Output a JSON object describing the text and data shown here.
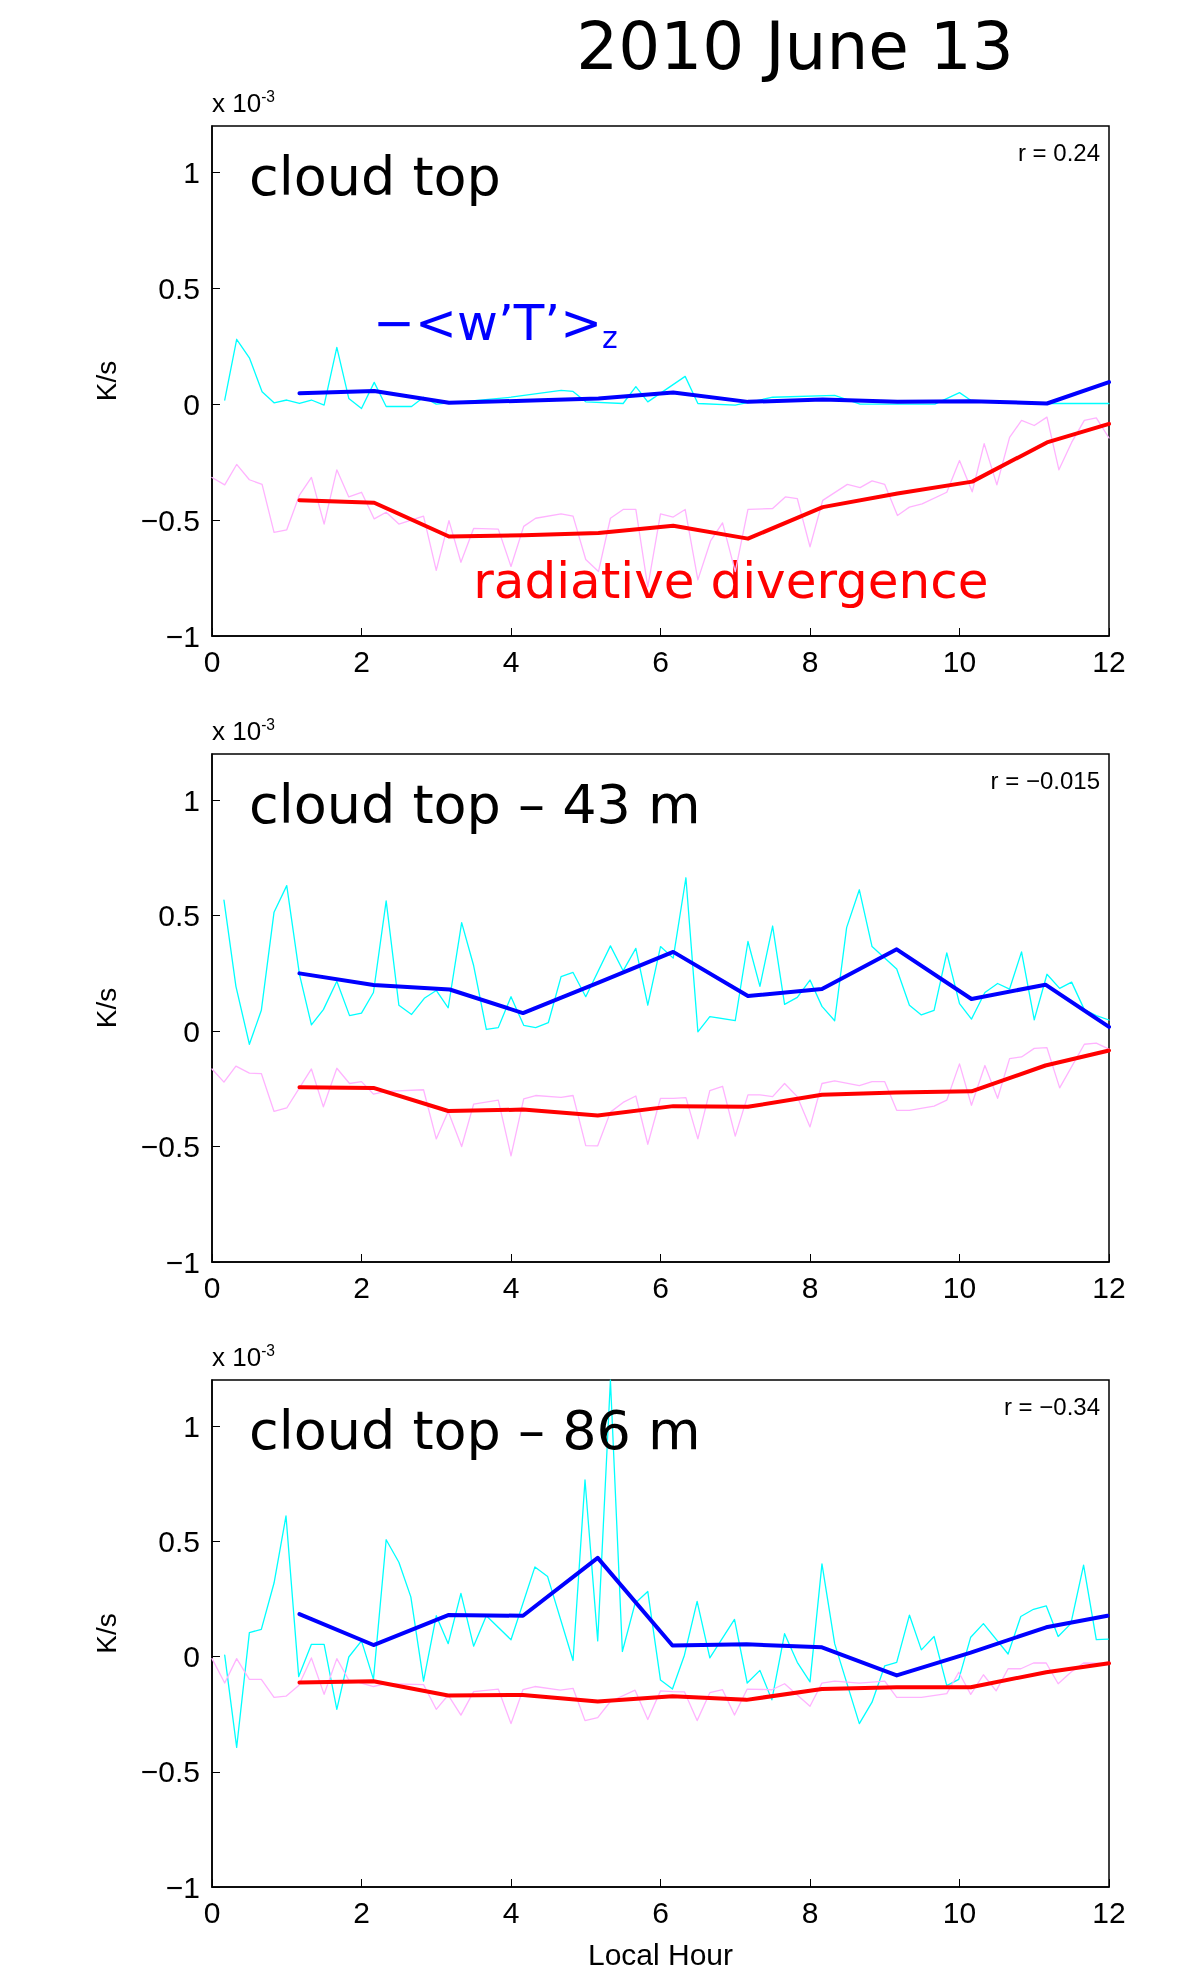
{
  "chart_data": [
    {
      "type": "line",
      "title": "2010 June 13",
      "subtitle": "cloud top",
      "ylabel": "K/s",
      "xlim": [
        0,
        12
      ],
      "xticks": [
        0,
        2,
        4,
        6,
        8,
        10,
        12
      ],
      "ylim": [
        -1,
        1.2
      ],
      "yticks": [
        -1,
        -0.5,
        0,
        0.5,
        1
      ],
      "grid": false,
      "legend": false,
      "marker": "none",
      "line_style": "solid",
      "annotations": [
        "x 10$^{-3}$",
        "r = 0.24"
      ],
      "series": [
        {
          "color": "#00ffff",
          "x": [
            0.17,
            0.33,
            0.5,
            0.67,
            0.83,
            1.0,
            1.17,
            1.33,
            1.5,
            1.67,
            1.83,
            2.0,
            2.17,
            2.33,
            2.67,
            2.83,
            3.0,
            4.0,
            4.67,
            4.83,
            5.0,
            5.5,
            5.67,
            5.83,
            6.33,
            6.5,
            7.0,
            7.5,
            8.33,
            8.67,
            9.67,
            10.0,
            10.17,
            11.17,
            12
          ],
          "values": [
            0.018,
            0.28,
            0.2,
            0.054,
            0.006,
            0.018,
            0.003,
            0.018,
            -0.004,
            0.245,
            0.025,
            -0.019,
            0.094,
            -0.01,
            -0.01,
            0.03,
            0,
            0.03,
            0.06,
            0.055,
            0.01,
            0.003,
            0.076,
            0.01,
            0.12,
            0.003,
            -0.004,
            0.03,
            0.038,
            0,
            0,
            0.05,
            0.013,
            0.003,
            0.003
          ]
        },
        {
          "color": "#ffb3ff",
          "x": [
            0,
            0.17,
            0.33,
            0.5,
            0.67,
            0.83,
            1.0,
            1.17,
            1.33,
            1.5,
            1.67,
            1.83,
            2.0,
            2.17,
            2.33,
            2.5,
            2.83,
            3.0,
            3.17,
            3.33,
            3.5,
            3.83,
            4.0,
            4.17,
            4.33,
            4.67,
            4.83,
            5.0,
            5.17,
            5.33,
            5.5,
            5.67,
            5.83,
            6.0,
            6.17,
            6.33,
            6.5,
            6.67,
            6.83,
            7.0,
            7.17,
            7.5,
            7.67,
            7.83,
            8.0,
            8.17,
            8.5,
            8.67,
            8.83,
            9.0,
            9.17,
            9.33,
            9.5,
            9.83,
            10.0,
            10.17,
            10.33,
            10.5,
            10.67,
            10.83,
            11.0,
            11.17,
            11.33,
            11.5,
            11.67,
            11.83,
            12
          ],
          "values": [
            -0.316,
            -0.348,
            -0.26,
            -0.326,
            -0.346,
            -0.553,
            -0.542,
            -0.392,
            -0.316,
            -0.517,
            -0.283,
            -0.4,
            -0.38,
            -0.495,
            -0.466,
            -0.517,
            -0.483,
            -0.717,
            -0.502,
            -0.682,
            -0.536,
            -0.539,
            -0.7,
            -0.527,
            -0.492,
            -0.473,
            -0.483,
            -0.67,
            -0.722,
            -0.492,
            -0.454,
            -0.454,
            -0.788,
            -0.473,
            -0.487,
            -0.454,
            -0.758,
            -0.59,
            -0.512,
            -0.722,
            -0.454,
            -0.45,
            -0.4,
            -0.407,
            -0.615,
            -0.415,
            -0.346,
            -0.36,
            -0.331,
            -0.346,
            -0.48,
            -0.444,
            -0.43,
            -0.38,
            -0.243,
            -0.378,
            -0.17,
            -0.348,
            -0.143,
            -0.07,
            -0.092,
            -0.056,
            -0.283,
            -0.165,
            -0.07,
            -0.059,
            -0.146
          ]
        },
        {
          "name": "−<w’T’>$_{z}$",
          "color": "#0000ff",
          "x": [
            1.17,
            2.17,
            3.17,
            4.17,
            5.17,
            6.17,
            7.17,
            8.17,
            9.17,
            10.17,
            11.17,
            12
          ],
          "values": [
            0.047,
            0.057,
            0.006,
            0.015,
            0.025,
            0.05,
            0.01,
            0.02,
            0.01,
            0.013,
            0.003,
            0.095
          ]
        },
        {
          "name": "radiative divergence",
          "color": "#ff0000",
          "x": [
            1.17,
            2.17,
            3.17,
            4.17,
            5.17,
            6.17,
            7.17,
            8.17,
            9.17,
            10.17,
            11.17,
            12
          ],
          "values": [
            -0.414,
            -0.425,
            -0.571,
            -0.565,
            -0.556,
            -0.524,
            -0.58,
            -0.444,
            -0.385,
            -0.334,
            -0.165,
            -0.085
          ]
        }
      ]
    },
    {
      "type": "line",
      "subtitle": "cloud top – 43 m",
      "ylabel": "K/s",
      "xlim": [
        0,
        12
      ],
      "xticks": [
        0,
        2,
        4,
        6,
        8,
        10,
        12
      ],
      "ylim": [
        -1,
        1.2
      ],
      "yticks": [
        -1,
        -0.5,
        0,
        0.5,
        1
      ],
      "grid": false,
      "legend": false,
      "marker": "none",
      "line_style": "solid",
      "annotations": [
        "x 10$^{-3}$",
        "r = −0.015"
      ],
      "series": [
        {
          "color": "#00ffff",
          "x": [
            0.16,
            0.32,
            0.5,
            0.66,
            0.83,
            1.0,
            1.17,
            1.33,
            1.49,
            1.67,
            1.84,
            2.0,
            2.16,
            2.33,
            2.5,
            2.67,
            2.84,
            3.0,
            3.16,
            3.34,
            3.5,
            3.67,
            3.83,
            4.0,
            4.17,
            4.33,
            4.5,
            4.67,
            4.83,
            5.0,
            5.33,
            5.5,
            5.67,
            5.83,
            6.0,
            6.17,
            6.34,
            6.5,
            6.66,
            7.0,
            7.17,
            7.33,
            7.5,
            7.66,
            7.83,
            8.0,
            8.16,
            8.33,
            8.49,
            8.66,
            8.83,
            9.16,
            9.33,
            9.49,
            9.66,
            9.83,
            10.0,
            10.16,
            10.34,
            10.51,
            10.67,
            10.83,
            11.0,
            11.17,
            11.34,
            11.5,
            11.67,
            11.83,
            12
          ],
          "values": [
            0.567,
            0.194,
            -0.057,
            0.09,
            0.515,
            0.63,
            0.246,
            0.027,
            0.093,
            0.216,
            0.067,
            0.078,
            0.167,
            0.564,
            0.112,
            0.072,
            0.142,
            0.176,
            0.101,
            0.47,
            0.284,
            0.007,
            0.015,
            0.149,
            0.025,
            0.015,
            0.037,
            0.236,
            0.254,
            0.149,
            0.369,
            0.261,
            0.358,
            0.112,
            0.366,
            0.316,
            0.664,
            -0.003,
            0.063,
            0.045,
            0.388,
            0.194,
            0.455,
            0.116,
            0.146,
            0.221,
            0.107,
            0.045,
            0.448,
            0.612,
            0.366,
            0.269,
            0.112,
            0.07,
            0.09,
            0.339,
            0.119,
            0.052,
            0.167,
            0.206,
            0.182,
            0.343,
            0.049,
            0.246,
            0.185,
            0.212,
            0.093,
            0.067,
            0.048
          ]
        },
        {
          "color": "#ffb3ff",
          "x": [
            0,
            0.16,
            0.32,
            0.5,
            0.66,
            0.83,
            1.0,
            1.17,
            1.33,
            1.49,
            1.67,
            1.84,
            2.0,
            2.16,
            2.33,
            2.83,
            3.0,
            3.16,
            3.34,
            3.5,
            3.83,
            4.0,
            4.17,
            4.33,
            4.67,
            4.83,
            5.0,
            5.16,
            5.33,
            5.5,
            5.67,
            5.83,
            6.0,
            6.17,
            6.34,
            6.5,
            6.66,
            6.83,
            7.0,
            7.17,
            7.33,
            7.5,
            7.66,
            7.83,
            8.0,
            8.16,
            8.33,
            8.66,
            8.83,
            9.0,
            9.16,
            9.33,
            9.66,
            9.83,
            10.0,
            10.16,
            10.34,
            10.51,
            10.67,
            10.83,
            11.0,
            11.17,
            11.34,
            11.67,
            11.83,
            12
          ],
          "values": [
            -0.164,
            -0.221,
            -0.152,
            -0.182,
            -0.184,
            -0.348,
            -0.333,
            -0.246,
            -0.164,
            -0.328,
            -0.161,
            -0.227,
            -0.219,
            -0.273,
            -0.261,
            -0.254,
            -0.467,
            -0.348,
            -0.5,
            -0.316,
            -0.299,
            -0.54,
            -0.294,
            -0.279,
            -0.287,
            -0.279,
            -0.496,
            -0.497,
            -0.351,
            -0.309,
            -0.281,
            -0.49,
            -0.291,
            -0.291,
            -0.288,
            -0.467,
            -0.258,
            -0.239,
            -0.455,
            -0.276,
            -0.276,
            -0.284,
            -0.227,
            -0.284,
            -0.415,
            -0.227,
            -0.216,
            -0.236,
            -0.219,
            -0.219,
            -0.343,
            -0.343,
            -0.325,
            -0.299,
            -0.142,
            -0.321,
            -0.149,
            -0.291,
            -0.119,
            -0.112,
            -0.075,
            -0.072,
            -0.246,
            -0.057,
            -0.052,
            -0.078
          ]
        },
        {
          "color": "#0000ff",
          "x": [
            1.17,
            2.16,
            3.18,
            4.16,
            5.17,
            6.17,
            7.17,
            8.16,
            9.16,
            10.16,
            11.15,
            12
          ],
          "values": [
            0.25,
            0.2,
            0.18,
            0.078,
            0.21,
            0.343,
            0.152,
            0.182,
            0.354,
            0.139,
            0.201,
            0.018
          ]
        },
        {
          "color": "#ff0000",
          "x": [
            1.17,
            2.16,
            3.16,
            4.16,
            5.16,
            6.17,
            7.17,
            8.16,
            9.15,
            10.16,
            11.15,
            12
          ],
          "values": [
            -0.243,
            -0.246,
            -0.346,
            -0.34,
            -0.366,
            -0.325,
            -0.328,
            -0.276,
            -0.266,
            -0.261,
            -0.149,
            -0.084
          ]
        }
      ]
    },
    {
      "type": "line",
      "subtitle": "cloud top – 86 m",
      "xlabel": "Local Hour",
      "ylabel": "K/s",
      "xlim": [
        0,
        12
      ],
      "xticks": [
        0,
        2,
        4,
        6,
        8,
        10,
        12
      ],
      "ylim": [
        -1,
        1.2
      ],
      "yticks": [
        -1,
        -0.5,
        0,
        0.5,
        1
      ],
      "grid": false,
      "legend": false,
      "marker": "none",
      "line_style": "solid",
      "annotations": [
        "x 10$^{-3}$",
        "r = −0.34"
      ],
      "series": [
        {
          "color": "#00ffff",
          "x": [
            0.17,
            0.33,
            0.5,
            0.66,
            0.83,
            0.99,
            1.16,
            1.33,
            1.5,
            1.67,
            1.83,
            2.0,
            2.16,
            2.33,
            2.5,
            2.66,
            2.83,
            3.0,
            3.16,
            3.33,
            3.5,
            3.67,
            4.0,
            4.32,
            4.49,
            4.83,
            4.99,
            5.16,
            5.33,
            5.49,
            5.66,
            5.83,
            6.0,
            6.16,
            6.32,
            6.49,
            6.66,
            6.99,
            7.16,
            7.33,
            7.49,
            7.66,
            7.83,
            8.0,
            8.16,
            8.33,
            8.66,
            8.83,
            9.0,
            9.16,
            9.33,
            9.49,
            9.66,
            9.83,
            9.99,
            10.15,
            10.32,
            10.65,
            10.82,
            10.99,
            11.16,
            11.32,
            11.49,
            11.66,
            11.83,
            11.99
          ],
          "values": [
            0.006,
            -0.394,
            0.104,
            0.118,
            0.319,
            0.61,
            -0.087,
            0.053,
            0.053,
            -0.229,
            -0.002,
            0.068,
            -0.099,
            0.507,
            0.409,
            0.259,
            -0.107,
            0.177,
            0.056,
            0.274,
            0.045,
            0.177,
            0.073,
            0.389,
            0.347,
            -0.017,
            0.766,
            0.068,
            1.2,
            0.022,
            0.231,
            0.282,
            -0.102,
            -0.141,
            0.006,
            0.239,
            -0.006,
            0.161,
            -0.115,
            -0.06,
            -0.188,
            0.099,
            -0.025,
            -0.11,
            0.402,
            0.056,
            -0.291,
            -0.198,
            -0.04,
            -0.025,
            0.18,
            0.029,
            0.087,
            -0.126,
            -0.099,
            0.084,
            0.143,
            0.011,
            0.174,
            0.205,
            0.22,
            0.087,
            0.143,
            0.397,
            0.073,
            0.076
          ]
        },
        {
          "color": "#ffb3ff",
          "x": [
            0,
            0.17,
            0.33,
            0.5,
            0.66,
            0.83,
            0.99,
            1.16,
            1.33,
            1.5,
            1.67,
            1.83,
            2.0,
            2.16,
            2.33,
            2.83,
            3.0,
            3.16,
            3.33,
            3.5,
            3.83,
            4.0,
            4.16,
            4.32,
            4.66,
            4.83,
            4.99,
            5.16,
            5.33,
            5.66,
            5.83,
            6.0,
            6.16,
            6.32,
            6.49,
            6.66,
            6.83,
            6.99,
            7.16,
            7.49,
            7.66,
            8.0,
            8.16,
            8.33,
            8.66,
            9.0,
            9.16,
            9.49,
            9.83,
            9.99,
            10.15,
            10.32,
            10.49,
            10.65,
            10.82,
            10.99,
            11.16,
            11.32,
            11.49,
            11.66,
            11.99
          ],
          "values": [
            -0.009,
            -0.115,
            -0.009,
            -0.099,
            -0.099,
            -0.177,
            -0.172,
            -0.126,
            -0.006,
            -0.164,
            -0.009,
            -0.102,
            -0.115,
            -0.13,
            -0.118,
            -0.122,
            -0.229,
            -0.167,
            -0.254,
            -0.152,
            -0.141,
            -0.291,
            -0.144,
            -0.13,
            -0.146,
            -0.138,
            -0.278,
            -0.265,
            -0.195,
            -0.146,
            -0.273,
            -0.149,
            -0.152,
            -0.153,
            -0.278,
            -0.157,
            -0.144,
            -0.254,
            -0.141,
            -0.144,
            -0.118,
            -0.216,
            -0.115,
            -0.107,
            -0.115,
            -0.107,
            -0.177,
            -0.177,
            -0.161,
            -0.068,
            -0.164,
            -0.079,
            -0.149,
            -0.053,
            -0.053,
            -0.028,
            -0.028,
            -0.118,
            -0.068,
            -0.028,
            -0.03
          ]
        },
        {
          "color": "#0000ff",
          "x": [
            1.17,
            2.16,
            3.16,
            4.16,
            5.16,
            6.16,
            7.15,
            8.16,
            9.16,
            10.15,
            11.16,
            11.98
          ],
          "values": [
            0.184,
            0.05,
            0.18,
            0.177,
            0.428,
            0.048,
            0.053,
            0.04,
            -0.082,
            0.017,
            0.127,
            0.177
          ]
        },
        {
          "color": "#ff0000",
          "x": [
            1.17,
            2.16,
            3.16,
            4.16,
            5.16,
            6.16,
            7.15,
            8.16,
            9.16,
            10.15,
            11.16,
            12
          ],
          "values": [
            -0.113,
            -0.107,
            -0.169,
            -0.167,
            -0.195,
            -0.172,
            -0.188,
            -0.141,
            -0.133,
            -0.133,
            -0.068,
            -0.029
          ]
        }
      ]
    }
  ]
}
